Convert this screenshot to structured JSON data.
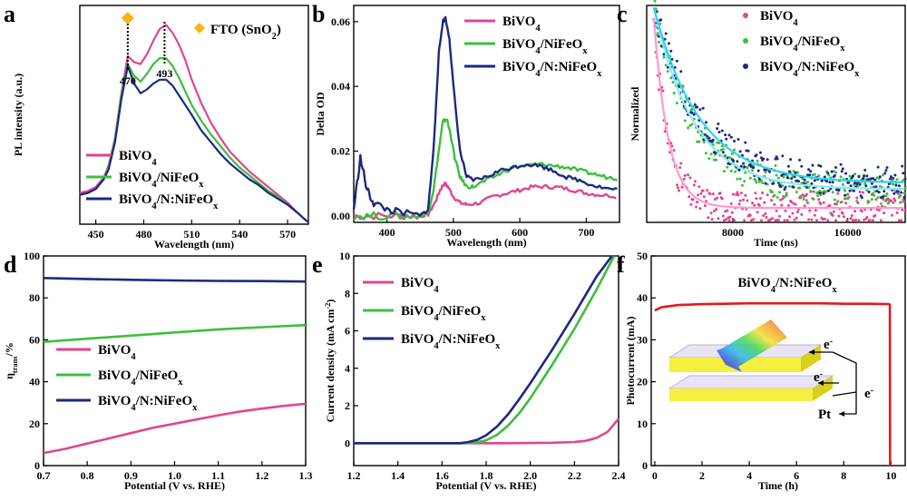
{
  "chart_data": [
    {
      "panel": "a",
      "type": "line",
      "xlabel": "Wavelength (nm)",
      "ylabel": "PL intensity (a.u.)",
      "xlim": [
        440,
        583
      ],
      "ylim": [
        0,
        1.12
      ],
      "xticks": [
        "450",
        "480",
        "510",
        "540",
        "570"
      ],
      "x_tick_values": [
        450,
        480,
        510,
        540,
        570
      ],
      "annotation": {
        "marker": "diamond",
        "marker_color": "#f4b41a",
        "label": "FTO (SnO",
        "label_sub": "2",
        "label_end": ")"
      },
      "peak_labels": [
        {
          "x": 470,
          "label": "470"
        },
        {
          "x": 493,
          "label": "493"
        }
      ],
      "legend": [
        {
          "label": "BiVO",
          "sub": "4",
          "tail": "",
          "color": "#e0468e"
        },
        {
          "label": "BiVO",
          "sub": "4",
          "tail": "/NiFeO",
          "sub2": "x",
          "color": "#3cbf3c"
        },
        {
          "label": "BiVO",
          "sub": "4",
          "tail": "/N:NiFeO",
          "sub2": "x",
          "color": "#1b2a80"
        }
      ],
      "series": [
        {
          "name": "BiVO4",
          "color": "#e0468e",
          "x": [
            440,
            445,
            450,
            455,
            458,
            462,
            466,
            470,
            474,
            478,
            482,
            486,
            490,
            494,
            498,
            502,
            506,
            510,
            516,
            522,
            528,
            534,
            540,
            546,
            552,
            558,
            564,
            570,
            576,
            580,
            583
          ],
          "y": [
            0.16,
            0.17,
            0.19,
            0.24,
            0.3,
            0.44,
            0.67,
            0.86,
            0.83,
            0.82,
            0.87,
            0.94,
            1.0,
            1.02,
            0.98,
            0.92,
            0.84,
            0.74,
            0.62,
            0.52,
            0.44,
            0.37,
            0.32,
            0.27,
            0.23,
            0.19,
            0.15,
            0.11,
            0.06,
            0.03,
            0.01
          ]
        },
        {
          "name": "BiVO4/NiFeOx",
          "color": "#3cbf3c",
          "x": [
            440,
            445,
            450,
            455,
            458,
            462,
            466,
            470,
            474,
            478,
            482,
            486,
            490,
            494,
            498,
            502,
            506,
            510,
            516,
            522,
            528,
            534,
            540,
            546,
            552,
            558,
            564,
            570,
            576,
            580,
            583
          ],
          "y": [
            0.15,
            0.16,
            0.18,
            0.23,
            0.29,
            0.43,
            0.66,
            0.82,
            0.76,
            0.73,
            0.77,
            0.82,
            0.85,
            0.85,
            0.81,
            0.75,
            0.68,
            0.61,
            0.53,
            0.46,
            0.4,
            0.34,
            0.29,
            0.25,
            0.21,
            0.17,
            0.14,
            0.1,
            0.06,
            0.03,
            0.01
          ]
        },
        {
          "name": "BiVO4/N:NiFeOx",
          "color": "#1b2a80",
          "x": [
            440,
            445,
            450,
            455,
            458,
            462,
            466,
            470,
            474,
            478,
            482,
            486,
            490,
            494,
            498,
            502,
            506,
            510,
            516,
            522,
            528,
            534,
            540,
            546,
            552,
            558,
            564,
            570,
            576,
            580,
            583
          ],
          "y": [
            0.15,
            0.16,
            0.18,
            0.23,
            0.28,
            0.42,
            0.64,
            0.81,
            0.72,
            0.67,
            0.69,
            0.72,
            0.74,
            0.74,
            0.71,
            0.66,
            0.61,
            0.56,
            0.48,
            0.42,
            0.36,
            0.31,
            0.27,
            0.23,
            0.2,
            0.16,
            0.13,
            0.1,
            0.06,
            0.03,
            0.01
          ]
        }
      ]
    },
    {
      "panel": "b",
      "type": "line",
      "xlabel": "Wavelength (nm)",
      "ylabel": "Delta OD",
      "xlim": [
        350,
        750
      ],
      "ylim": [
        -0.002,
        0.065
      ],
      "xticks": [
        "400",
        "500",
        "600",
        "700"
      ],
      "x_tick_values": [
        400,
        500,
        600,
        700
      ],
      "yticks": [
        "0.00",
        "0.02",
        "0.04",
        "0.06"
      ],
      "y_tick_values": [
        0,
        0.02,
        0.04,
        0.06
      ],
      "legend": [
        {
          "label": "BiVO",
          "sub": "4",
          "tail": "",
          "color": "#e0468e"
        },
        {
          "label": "BiVO",
          "sub": "4",
          "tail": "/NiFeO",
          "sub2": "x",
          "color": "#3cbf3c"
        },
        {
          "label": "BiVO",
          "sub": "4",
          "tail": "/N:NiFeO",
          "sub2": "x",
          "color": "#1b2a80"
        }
      ],
      "series": [
        {
          "name": "BiVO4",
          "color": "#e0468e",
          "x": [
            350,
            380,
            420,
            450,
            462,
            472,
            480,
            486,
            492,
            500,
            510,
            520,
            540,
            560,
            580,
            600,
            620,
            640,
            660,
            680,
            700,
            720,
            750
          ],
          "y": [
            0.0,
            0.0,
            0.0,
            0.0,
            0.0005,
            0.004,
            0.008,
            0.01,
            0.009,
            0.006,
            0.004,
            0.0035,
            0.004,
            0.006,
            0.007,
            0.008,
            0.009,
            0.009,
            0.0088,
            0.008,
            0.007,
            0.0065,
            0.006
          ]
        },
        {
          "name": "BiVO4/NiFeOx",
          "color": "#3cbf3c",
          "x": [
            350,
            380,
            420,
            450,
            462,
            470,
            478,
            484,
            490,
            496,
            502,
            510,
            520,
            530,
            550,
            570,
            590,
            610,
            630,
            650,
            670,
            690,
            710,
            730,
            750
          ],
          "y": [
            0.0,
            0.0,
            0.0,
            0.0,
            0.001,
            0.008,
            0.02,
            0.029,
            0.03,
            0.025,
            0.018,
            0.012,
            0.009,
            0.009,
            0.011,
            0.013,
            0.015,
            0.0155,
            0.016,
            0.0155,
            0.015,
            0.014,
            0.013,
            0.012,
            0.0115
          ]
        },
        {
          "name": "BiVO4/N:NiFeOx",
          "color": "#1b2a80",
          "x": [
            350,
            360,
            370,
            380,
            400,
            420,
            450,
            462,
            470,
            478,
            484,
            488,
            494,
            500,
            510,
            520,
            530,
            550,
            570,
            590,
            610,
            630,
            650,
            670,
            690,
            710,
            730,
            750
          ],
          "y": [
            0.002,
            0.018,
            0.008,
            0.004,
            0.002,
            0.001,
            0.0,
            0.002,
            0.02,
            0.05,
            0.06,
            0.061,
            0.055,
            0.04,
            0.02,
            0.012,
            0.011,
            0.012,
            0.014,
            0.015,
            0.016,
            0.0155,
            0.014,
            0.012,
            0.011,
            0.0095,
            0.0085,
            0.008
          ]
        }
      ]
    },
    {
      "panel": "c",
      "type": "scatter",
      "xlabel": "Time (ns)",
      "ylabel": "Normalized",
      "xlim": [
        2000,
        20000
      ],
      "ylim": [
        0,
        1.05
      ],
      "xticks": [
        "8000",
        "16000"
      ],
      "x_tick_values": [
        8000,
        16000
      ],
      "legend": [
        {
          "label": "BiVO",
          "sub": "4",
          "tail": "",
          "color": "#e0468e"
        },
        {
          "label": "BiVO",
          "sub": "4",
          "tail": "/NiFeO",
          "sub2": "x",
          "color": "#3cbf3c"
        },
        {
          "label": "BiVO",
          "sub": "4",
          "tail": "/N:NiFeO",
          "sub2": "x",
          "color": "#1b2a80"
        }
      ],
      "series": [
        {
          "name": "BiVO4",
          "color": "#e0468e",
          "fit_color": "#ff9ad0",
          "A": 0.92,
          "tau": 1000,
          "offset": 0.07,
          "t0": 2500
        },
        {
          "name": "BiVO4/NiFeOx",
          "color": "#3cbf3c",
          "fit_color": "#8fe8ff",
          "A": 0.88,
          "tau": 2800,
          "offset": 0.16,
          "t0": 2500
        },
        {
          "name": "BiVO4/N:NiFeOx",
          "color": "#1b2a80",
          "fit_color": "#2fd3f0",
          "A": 0.85,
          "tau": 3200,
          "offset": 0.19,
          "t0": 2500
        }
      ]
    },
    {
      "panel": "d",
      "type": "line",
      "xlabel": "Potential (V vs. RHE)",
      "ylabel": "η",
      "ylabel_sub": "trans",
      "ylabel_tail": "/%",
      "xlim": [
        0.7,
        1.3
      ],
      "ylim": [
        0,
        100
      ],
      "xticks": [
        "0.7",
        "0.8",
        "0.9",
        "1.0",
        "1.1",
        "1.2",
        "1.3"
      ],
      "x_tick_values": [
        0.7,
        0.8,
        0.9,
        1.0,
        1.1,
        1.2,
        1.3
      ],
      "yticks": [
        "0",
        "20",
        "40",
        "60",
        "80",
        "100"
      ],
      "y_tick_values": [
        0,
        20,
        40,
        60,
        80,
        100
      ],
      "legend": [
        {
          "label": "BiVO",
          "sub": "4",
          "tail": "",
          "color": "#e0468e"
        },
        {
          "label": "BiVO",
          "sub": "4",
          "tail": "/NiFeO",
          "sub2": "x",
          "color": "#3cbf3c"
        },
        {
          "label": "BiVO",
          "sub": "4",
          "tail": "/N:NiFeO",
          "sub2": "x",
          "color": "#1b2a80"
        }
      ],
      "series": [
        {
          "name": "BiVO4",
          "color": "#e0468e",
          "x": [
            0.7,
            0.75,
            0.8,
            0.85,
            0.9,
            0.95,
            1.0,
            1.05,
            1.1,
            1.15,
            1.2,
            1.25,
            1.3
          ],
          "y": [
            6,
            8,
            10.5,
            13,
            15.5,
            18,
            20,
            22,
            24,
            25.8,
            27.2,
            28.5,
            29.5
          ]
        },
        {
          "name": "BiVO4/NiFeOx",
          "color": "#3cbf3c",
          "x": [
            0.7,
            0.8,
            0.9,
            1.0,
            1.1,
            1.2,
            1.3
          ],
          "y": [
            59,
            60.5,
            62,
            63.5,
            65,
            66,
            67
          ]
        },
        {
          "name": "BiVO4/N:NiFeOx",
          "color": "#1b2a80",
          "x": [
            0.7,
            0.8,
            0.9,
            1.0,
            1.1,
            1.2,
            1.3
          ],
          "y": [
            89.5,
            89,
            88.6,
            88.3,
            88.1,
            88,
            87.8
          ]
        }
      ]
    },
    {
      "panel": "e",
      "type": "line",
      "xlabel": "Potential (V vs. RHE)",
      "ylabel": "Current density (mA cm",
      "ylabel_sup": "-2",
      "ylabel_tail": ")",
      "xlim": [
        1.2,
        2.4
      ],
      "ylim": [
        -1.2,
        10
      ],
      "xticks": [
        "1.2",
        "1.4",
        "1.6",
        "1.8",
        "2.0",
        "2.2",
        "2.4"
      ],
      "x_tick_values": [
        1.2,
        1.4,
        1.6,
        1.8,
        2.0,
        2.2,
        2.4
      ],
      "yticks": [
        "0",
        "2",
        "4",
        "6",
        "8",
        "10"
      ],
      "y_tick_values": [
        0,
        2,
        4,
        6,
        8,
        10
      ],
      "legend": [
        {
          "label": "BiVO",
          "sub": "4",
          "tail": "",
          "color": "#e0468e"
        },
        {
          "label": "BiVO",
          "sub": "4",
          "tail": "/NiFeO",
          "sub2": "x",
          "color": "#3cbf3c"
        },
        {
          "label": "BiVO",
          "sub": "4",
          "tail": "/N:NiFeO",
          "sub2": "x",
          "color": "#1b2a80"
        }
      ],
      "series": [
        {
          "name": "BiVO4",
          "color": "#e0468e",
          "x": [
            1.2,
            1.6,
            1.9,
            2.1,
            2.2,
            2.25,
            2.3,
            2.35,
            2.4
          ],
          "y": [
            0,
            0,
            0,
            0.02,
            0.06,
            0.12,
            0.28,
            0.6,
            1.3
          ]
        },
        {
          "name": "BiVO4/NiFeOx",
          "color": "#3cbf3c",
          "x": [
            1.2,
            1.7,
            1.76,
            1.8,
            1.85,
            1.9,
            1.95,
            2.0,
            2.05,
            2.1,
            2.2,
            2.3,
            2.38
          ],
          "y": [
            0,
            0,
            0.05,
            0.15,
            0.45,
            0.95,
            1.6,
            2.4,
            3.3,
            4.2,
            6.1,
            8.2,
            10
          ]
        },
        {
          "name": "BiVO4/N:NiFeOx",
          "color": "#1b2a80",
          "x": [
            1.2,
            1.68,
            1.72,
            1.76,
            1.8,
            1.85,
            1.9,
            1.95,
            2.0,
            2.05,
            2.1,
            2.2,
            2.3,
            2.37
          ],
          "y": [
            0,
            0,
            0.06,
            0.18,
            0.42,
            0.9,
            1.55,
            2.35,
            3.2,
            4.1,
            5.0,
            6.9,
            8.9,
            10
          ]
        }
      ]
    },
    {
      "panel": "f",
      "type": "line",
      "xlabel": "Time (h)",
      "ylabel": "Photocurrent (mA)",
      "title": "BiVO",
      "title_sub": "4",
      "title_tail": "/N:NiFeO",
      "title_sub2": "x",
      "xlim": [
        -0.15,
        10.6
      ],
      "ylim": [
        0,
        50
      ],
      "xticks": [
        "0",
        "2",
        "4",
        "6",
        "8",
        "10"
      ],
      "x_tick_values": [
        0,
        2,
        4,
        6,
        8,
        10
      ],
      "yticks": [
        "0",
        "10",
        "20",
        "30",
        "40",
        "50"
      ],
      "y_tick_values": [
        0,
        10,
        20,
        30,
        40,
        50
      ],
      "inset_labels": [
        "e",
        "e",
        "e",
        "Pt"
      ],
      "inset_sup": "-",
      "series": [
        {
          "name": "BiVO4/N:NiFeOx",
          "color": "#e31a1c",
          "x": [
            0,
            0.3,
            1,
            2,
            3,
            4,
            5,
            6,
            7,
            8,
            9,
            9.9,
            9.95,
            9.96
          ],
          "y": [
            37,
            37.8,
            38.3,
            38.5,
            38.6,
            38.7,
            38.7,
            38.7,
            38.7,
            38.6,
            38.6,
            38.5,
            38.4,
            0
          ]
        }
      ]
    }
  ]
}
